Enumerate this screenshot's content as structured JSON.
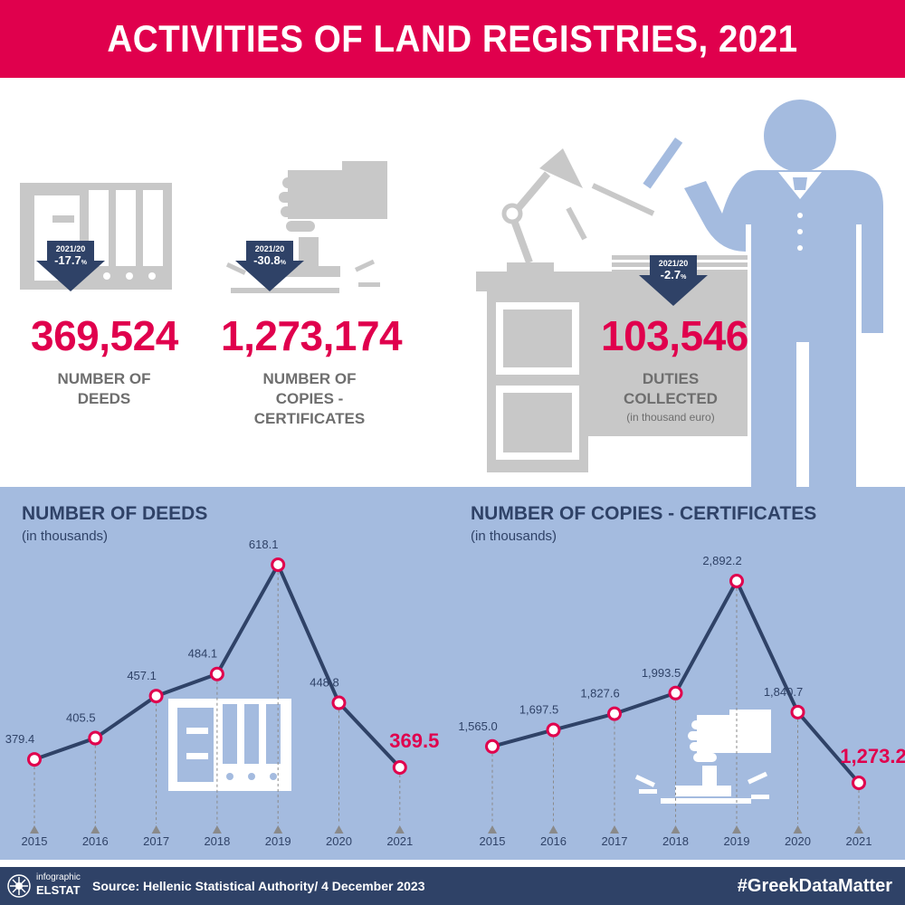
{
  "title": "ACTIVITIES OF LAND REGISTRIES, 2021",
  "kpis": {
    "deeds": {
      "value": "369,524",
      "label_line1": "NUMBER OF",
      "label_line2": "DEEDS",
      "badge_period": "2021/20",
      "badge_change": "-17.7",
      "badge_unit": "%"
    },
    "copies": {
      "value": "1,273,174",
      "label_line1": "NUMBER OF",
      "label_line2": "COPIES -",
      "label_line3": "CERTIFICATES",
      "badge_period": "2021/20",
      "badge_change": "-30.8",
      "badge_unit": "%"
    },
    "duties": {
      "value": "103,546",
      "label_line1": "DUTIES",
      "label_line2": "COLLECTED",
      "sublabel": "(in thousand euro)",
      "badge_period": "2021/20",
      "badge_change": "-2.7",
      "badge_unit": "%"
    }
  },
  "colors": {
    "accent": "#e0004d",
    "navy": "#2f4267",
    "panel": "#a4bbdf",
    "gray": "#c8c8c8",
    "figure": "#a4bbdf"
  },
  "icons": [
    "binder-folder-icon",
    "stamp-hand-icon",
    "desk-lamp-icon",
    "officer-person-icon"
  ],
  "chart_data": [
    {
      "type": "line",
      "title": "NUMBER OF DEEDS",
      "subtitle": "(in thousands)",
      "x": [
        "2015",
        "2016",
        "2017",
        "2018",
        "2019",
        "2020",
        "2021"
      ],
      "series": [
        {
          "values": [
            379.4,
            405.5,
            457.1,
            484.1,
            618.1,
            448.8,
            369.5
          ]
        }
      ],
      "data_labels": [
        "379.4",
        "405.5",
        "457.1",
        "484.1",
        "618.1",
        "448.8",
        "369.5"
      ],
      "highlight_last": true
    },
    {
      "type": "line",
      "title": "NUMBER OF COPIES - CERTIFICATES",
      "subtitle": "(in thousands)",
      "x": [
        "2015",
        "2016",
        "2017",
        "2018",
        "2019",
        "2020",
        "2021"
      ],
      "series": [
        {
          "values": [
            1565.0,
            1697.5,
            1827.6,
            1993.5,
            2892.2,
            1840.7,
            1273.2
          ]
        }
      ],
      "data_labels": [
        "1,565.0",
        "1,697.5",
        "1,827.6",
        "1,993.5",
        "2,892.2",
        "1,840.7",
        "1,273.2"
      ],
      "highlight_last": true
    }
  ],
  "footer": {
    "logo_line1": "infographic",
    "logo_line2": "ELSTAT",
    "source": "Source: Hellenic Statistical Authority/ 4 December 2023",
    "hashtag": "#GreekDataMatter"
  }
}
